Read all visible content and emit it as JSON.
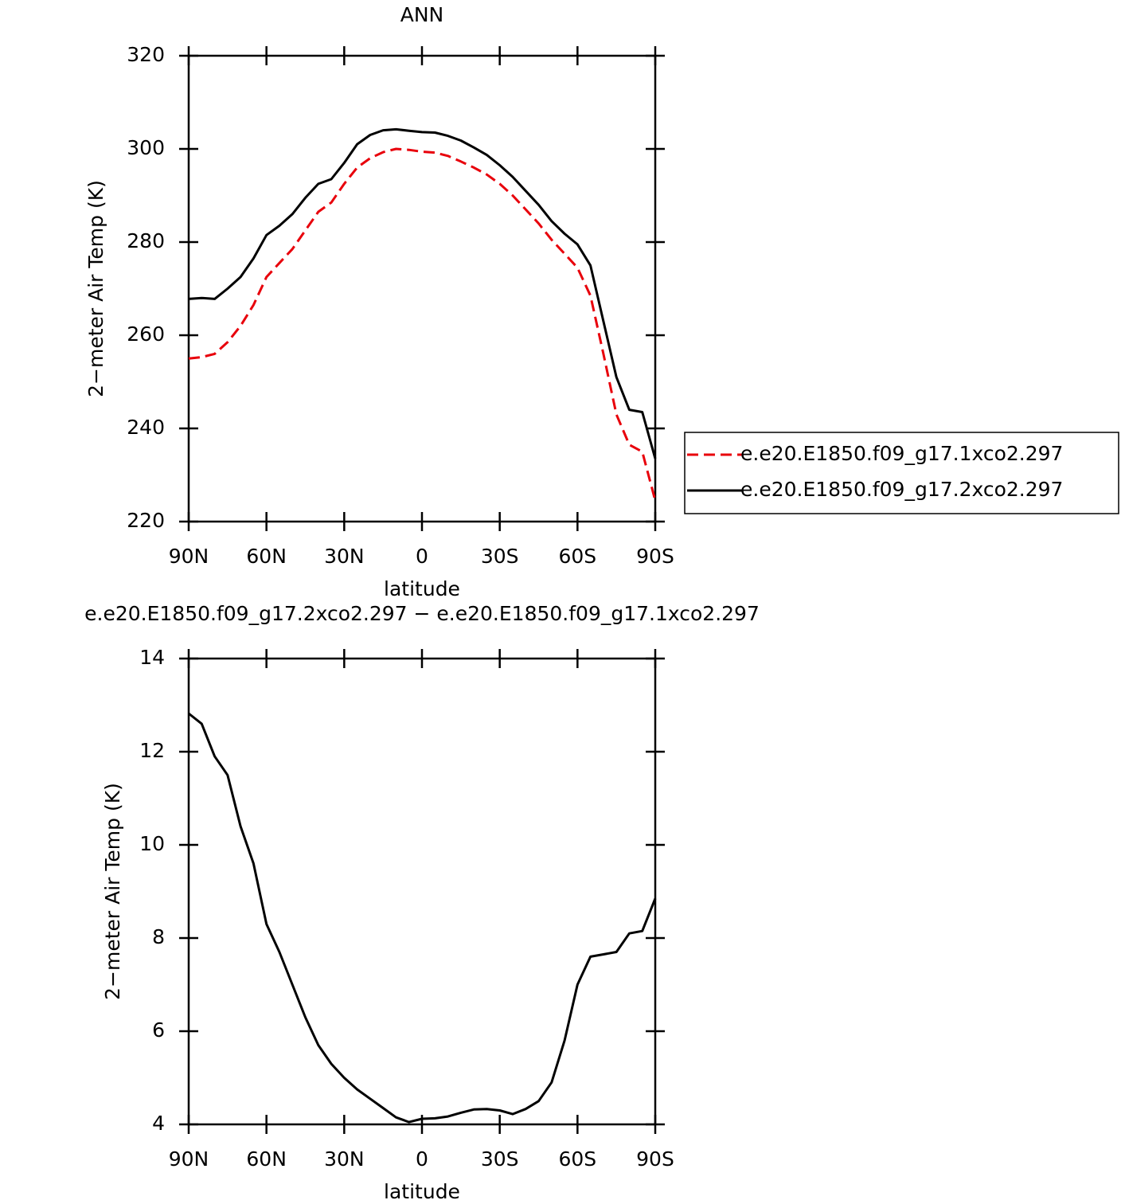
{
  "chart_data": [
    {
      "type": "line",
      "title": "ANN",
      "xlabel": "latitude",
      "ylabel": "2−meter Air Temp (K)",
      "x": [
        90,
        85,
        80,
        75,
        70,
        65,
        60,
        55,
        50,
        45,
        40,
        35,
        30,
        25,
        20,
        15,
        10,
        5,
        0,
        -5,
        -10,
        -15,
        -20,
        -25,
        -30,
        -35,
        -40,
        -45,
        -50,
        -55,
        -60,
        -65,
        -70,
        -75,
        -80,
        -85,
        -90
      ],
      "series": [
        {
          "name": "e.e20.E1850.f09_g17.1xco2.297",
          "color": "#e8000b",
          "dash": true,
          "values": [
            255,
            255.3,
            256,
            258.5,
            262,
            266.5,
            272.5,
            275.5,
            278.5,
            282.5,
            286.5,
            288.5,
            292.5,
            296,
            298,
            299.3,
            300,
            299.8,
            299.4,
            299.2,
            298.5,
            297.3,
            296,
            294.5,
            292.5,
            290,
            287,
            284,
            280.5,
            277.5,
            274.5,
            268.5,
            256,
            243,
            236.5,
            235,
            224.5
          ]
        },
        {
          "name": "e.e20.E1850.f09_g17.2xco2.297",
          "color": "#000000",
          "dash": false,
          "values": [
            267.8,
            268,
            267.8,
            270,
            272.5,
            276.5,
            281.5,
            283.5,
            286,
            289.5,
            292.5,
            293.5,
            297,
            301,
            303,
            304,
            304.2,
            303.9,
            303.6,
            303.5,
            302.8,
            301.8,
            300.3,
            298.7,
            296.5,
            294,
            291,
            288,
            284.5,
            281.8,
            279.5,
            275,
            263,
            251,
            244,
            243.5,
            233.5
          ]
        }
      ],
      "xlim": [
        90,
        -90
      ],
      "xticks": [
        {
          "value": 90,
          "label": "90N"
        },
        {
          "value": 60,
          "label": "60N"
        },
        {
          "value": 30,
          "label": "30N"
        },
        0,
        {
          "value": -30,
          "label": "30S"
        },
        {
          "value": -60,
          "label": "60S"
        },
        {
          "value": -90,
          "label": "90S"
        }
      ],
      "ylim": [
        220,
        320
      ],
      "yticks": [
        220,
        240,
        260,
        280,
        300,
        320
      ],
      "legend": "right"
    },
    {
      "type": "line",
      "title": "e.e20.E1850.f09_g17.2xco2.297 − e.e20.E1850.f09_g17.1xco2.297",
      "xlabel": "latitude",
      "ylabel": "2−meter Air Temp (K)",
      "x": [
        90,
        85,
        80,
        75,
        70,
        65,
        60,
        55,
        50,
        45,
        40,
        35,
        30,
        25,
        20,
        15,
        10,
        5,
        0,
        -5,
        -10,
        -15,
        -20,
        -25,
        -30,
        -35,
        -40,
        -45,
        -50,
        -55,
        -60,
        -65,
        -70,
        -75,
        -80,
        -85,
        -90
      ],
      "color": "#000000",
      "values": [
        12.82,
        12.6,
        11.9,
        11.5,
        10.4,
        9.6,
        8.3,
        7.7,
        7.0,
        6.3,
        5.7,
        5.3,
        5.0,
        4.75,
        4.55,
        4.35,
        4.15,
        4.05,
        4.12,
        4.13,
        4.17,
        4.25,
        4.32,
        4.33,
        4.3,
        4.22,
        4.33,
        4.5,
        4.9,
        5.8,
        7.0,
        7.6,
        7.65,
        7.7,
        8.1,
        8.15,
        8.85
      ],
      "xlim": [
        90,
        -90
      ],
      "xticks": [
        {
          "value": 90,
          "label": "90N"
        },
        {
          "value": 60,
          "label": "60N"
        },
        {
          "value": 30,
          "label": "30N"
        },
        0,
        {
          "value": -30,
          "label": "30S"
        },
        {
          "value": -60,
          "label": "60S"
        },
        {
          "value": -90,
          "label": "90S"
        }
      ],
      "ylim": [
        4,
        14
      ],
      "yticks": [
        4,
        6,
        8,
        10,
        12,
        14
      ]
    }
  ]
}
